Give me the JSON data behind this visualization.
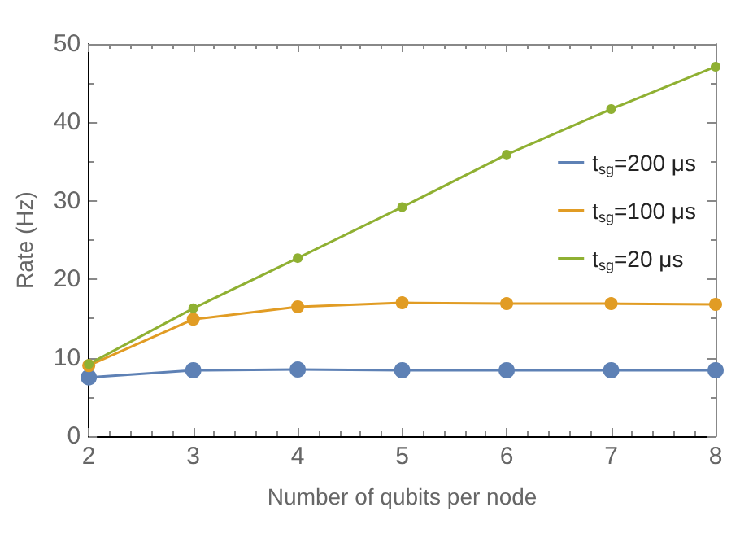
{
  "chart_data": {
    "type": "line",
    "xlabel": "Number of qubits per node",
    "ylabel": "Rate (Hz)",
    "x": [
      2,
      3,
      4,
      5,
      6,
      7,
      8
    ],
    "series": [
      {
        "name": "t$_{sg}$=200 μs",
        "color": "#5e81b5",
        "values": [
          7.5,
          8.4,
          8.5,
          8.4,
          8.4,
          8.4,
          8.4
        ]
      },
      {
        "name": "t$_{sg}$=100 μs",
        "color": "#e19c24",
        "values": [
          9.0,
          14.9,
          16.5,
          17.0,
          16.9,
          16.9,
          16.8
        ]
      },
      {
        "name": "t$_{sg}$=20 μs",
        "color": "#8fb032",
        "values": [
          9.2,
          16.3,
          22.7,
          29.2,
          35.9,
          41.7,
          47.1
        ]
      }
    ],
    "xlim": [
      2,
      8
    ],
    "xticks": [
      2,
      3,
      4,
      5,
      6,
      7,
      8
    ],
    "ylim": [
      0,
      50
    ],
    "yticks": [
      0,
      10,
      20,
      30,
      40,
      50
    ],
    "grid": false,
    "legend": "right",
    "marker": "circle",
    "line_style": "solid"
  }
}
